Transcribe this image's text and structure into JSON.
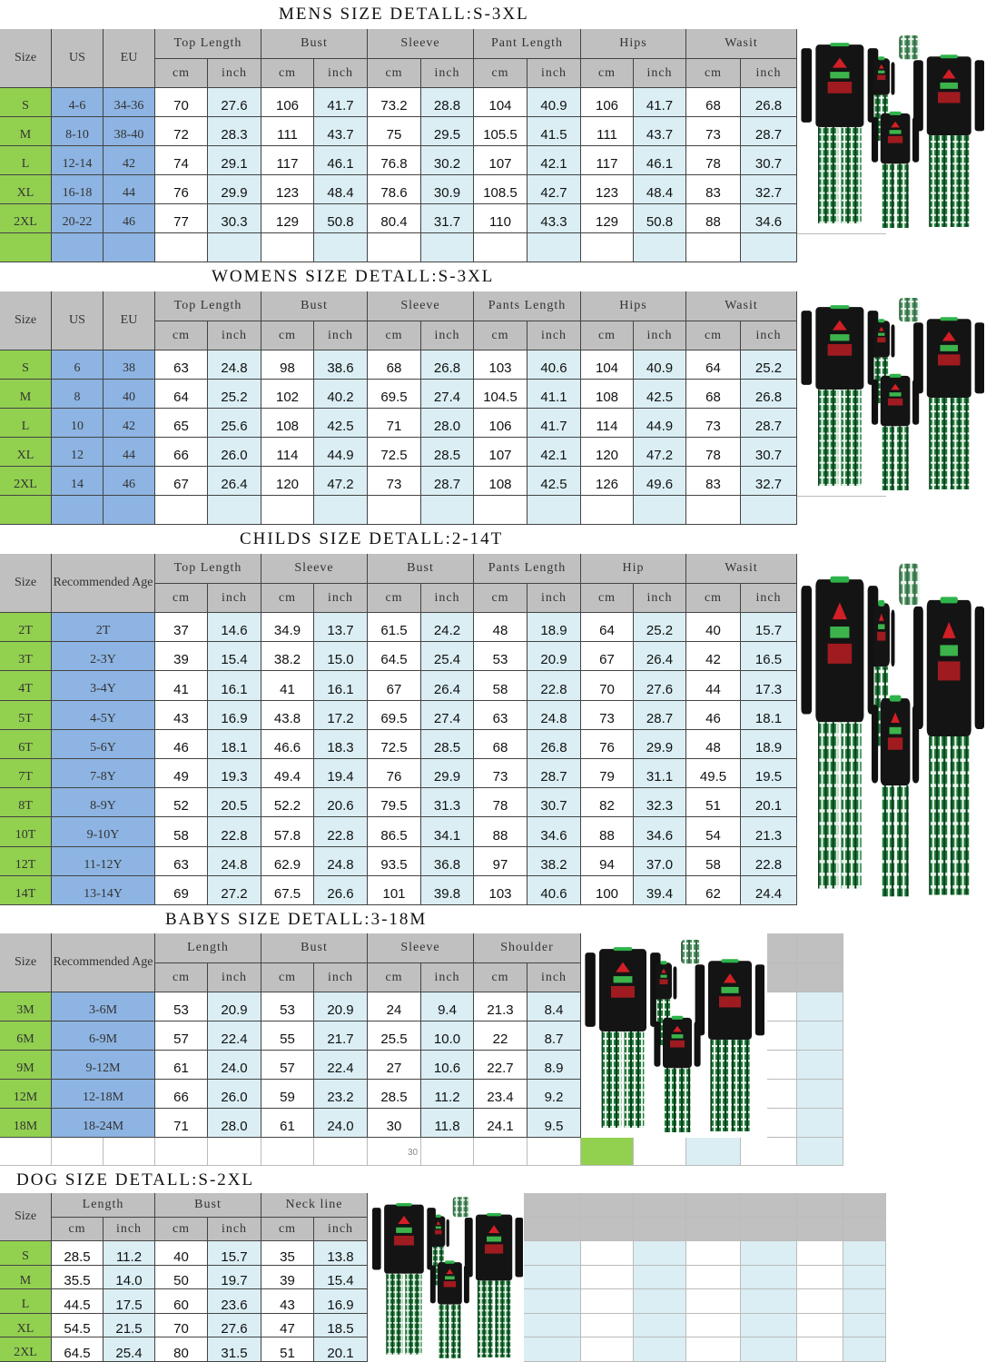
{
  "colors": {
    "header": "#c0c0c0",
    "size_col": "#92d050",
    "lead_col": "#8db4e2",
    "inch_col": "#daeef3",
    "cm_col": "#ffffff"
  },
  "sections": [
    {
      "title": "MENS SIZE DETALL:S-3XL",
      "lead_headers": [
        "Size",
        "US",
        "EU"
      ],
      "groups": [
        {
          "label": "Top Length",
          "sub": [
            "cm",
            "inch"
          ]
        },
        {
          "label": "Bust",
          "sub": [
            "cm",
            "inch"
          ]
        },
        {
          "label": "Sleeve",
          "sub": [
            "cm",
            "inch"
          ]
        },
        {
          "label": "Pant Length",
          "sub": [
            "cm",
            "inch"
          ]
        },
        {
          "label": "Hips",
          "sub": [
            "cm",
            "inch"
          ]
        },
        {
          "label": "Wasit",
          "sub": [
            "cm",
            "inch"
          ]
        }
      ],
      "rows": [
        [
          "S",
          "4-6",
          "34-36",
          "70",
          "27.6",
          "106",
          "41.7",
          "73.2",
          "28.8",
          "104",
          "40.9",
          "106",
          "41.7",
          "68",
          "26.8"
        ],
        [
          "M",
          "8-10",
          "38-40",
          "72",
          "28.3",
          "111",
          "43.7",
          "75",
          "29.5",
          "105.5",
          "41.5",
          "111",
          "43.7",
          "73",
          "28.7"
        ],
        [
          "L",
          "12-14",
          "42",
          "74",
          "29.1",
          "117",
          "46.1",
          "76.8",
          "30.2",
          "107",
          "42.1",
          "117",
          "46.1",
          "78",
          "30.7"
        ],
        [
          "XL",
          "16-18",
          "44",
          "76",
          "29.9",
          "123",
          "48.4",
          "78.6",
          "30.9",
          "108.5",
          "42.7",
          "123",
          "48.4",
          "83",
          "32.7"
        ],
        [
          "2XL",
          "20-22",
          "46",
          "77",
          "30.3",
          "129",
          "50.8",
          "80.4",
          "31.7",
          "110",
          "43.3",
          "129",
          "50.8",
          "88",
          "34.6"
        ]
      ]
    },
    {
      "title": "WOMENS SIZE DETALL:S-3XL",
      "lead_headers": [
        "Size",
        "US",
        "EU"
      ],
      "groups": [
        {
          "label": "Top Length",
          "sub": [
            "cm",
            "inch"
          ]
        },
        {
          "label": "Bust",
          "sub": [
            "cm",
            "inch"
          ]
        },
        {
          "label": "Sleeve",
          "sub": [
            "cm",
            "inch"
          ]
        },
        {
          "label": "Pants Length",
          "sub": [
            "cm",
            "inch"
          ]
        },
        {
          "label": "Hips",
          "sub": [
            "cm",
            "inch"
          ]
        },
        {
          "label": "Wasit",
          "sub": [
            "cm",
            "inch"
          ]
        }
      ],
      "rows": [
        [
          "S",
          "6",
          "38",
          "63",
          "24.8",
          "98",
          "38.6",
          "68",
          "26.8",
          "103",
          "40.6",
          "104",
          "40.9",
          "64",
          "25.2"
        ],
        [
          "M",
          "8",
          "40",
          "64",
          "25.2",
          "102",
          "40.2",
          "69.5",
          "27.4",
          "104.5",
          "41.1",
          "108",
          "42.5",
          "68",
          "26.8"
        ],
        [
          "L",
          "10",
          "42",
          "65",
          "25.6",
          "108",
          "42.5",
          "71",
          "28.0",
          "106",
          "41.7",
          "114",
          "44.9",
          "73",
          "28.7"
        ],
        [
          "XL",
          "12",
          "44",
          "66",
          "26.0",
          "114",
          "44.9",
          "72.5",
          "28.5",
          "107",
          "42.1",
          "120",
          "47.2",
          "78",
          "30.7"
        ],
        [
          "2XL",
          "14",
          "46",
          "67",
          "26.4",
          "120",
          "47.2",
          "73",
          "28.7",
          "108",
          "42.5",
          "126",
          "49.6",
          "83",
          "32.7"
        ]
      ]
    },
    {
      "title": "CHILDS SIZE DETALL:2-14T",
      "lead_headers": [
        "Size",
        "Recommended Age"
      ],
      "groups": [
        {
          "label": "Top Length",
          "sub": [
            "cm",
            "inch"
          ]
        },
        {
          "label": "Sleeve",
          "sub": [
            "cm",
            "inch"
          ]
        },
        {
          "label": "Bust",
          "sub": [
            "cm",
            "inch"
          ]
        },
        {
          "label": "Pants Length",
          "sub": [
            "cm",
            "inch"
          ]
        },
        {
          "label": "Hip",
          "sub": [
            "cm",
            "inch"
          ]
        },
        {
          "label": "Wasit",
          "sub": [
            "cm",
            "inch"
          ]
        }
      ],
      "rows": [
        [
          "2T",
          "2T",
          "37",
          "14.6",
          "34.9",
          "13.7",
          "61.5",
          "24.2",
          "48",
          "18.9",
          "64",
          "25.2",
          "40",
          "15.7"
        ],
        [
          "3T",
          "2-3Y",
          "39",
          "15.4",
          "38.2",
          "15.0",
          "64.5",
          "25.4",
          "53",
          "20.9",
          "67",
          "26.4",
          "42",
          "16.5"
        ],
        [
          "4T",
          "3-4Y",
          "41",
          "16.1",
          "41",
          "16.1",
          "67",
          "26.4",
          "58",
          "22.8",
          "70",
          "27.6",
          "44",
          "17.3"
        ],
        [
          "5T",
          "4-5Y",
          "43",
          "16.9",
          "43.8",
          "17.2",
          "69.5",
          "27.4",
          "63",
          "24.8",
          "73",
          "28.7",
          "46",
          "18.1"
        ],
        [
          "6T",
          "5-6Y",
          "46",
          "18.1",
          "46.6",
          "18.3",
          "72.5",
          "28.5",
          "68",
          "26.8",
          "76",
          "29.9",
          "48",
          "18.9"
        ],
        [
          "7T",
          "7-8Y",
          "49",
          "19.3",
          "49.4",
          "19.4",
          "76",
          "29.9",
          "73",
          "28.7",
          "79",
          "31.1",
          "49.5",
          "19.5"
        ],
        [
          "8T",
          "8-9Y",
          "52",
          "20.5",
          "52.2",
          "20.6",
          "79.5",
          "31.3",
          "78",
          "30.7",
          "82",
          "32.3",
          "51",
          "20.1"
        ],
        [
          "10T",
          "9-10Y",
          "58",
          "22.8",
          "57.8",
          "22.8",
          "86.5",
          "34.1",
          "88",
          "34.6",
          "88",
          "34.6",
          "54",
          "21.3"
        ],
        [
          "12T",
          "11-12Y",
          "63",
          "24.8",
          "62.9",
          "24.8",
          "93.5",
          "36.8",
          "97",
          "38.2",
          "94",
          "37.0",
          "58",
          "22.8"
        ],
        [
          "14T",
          "13-14Y",
          "69",
          "27.2",
          "67.5",
          "26.6",
          "101",
          "39.8",
          "103",
          "40.6",
          "100",
          "39.4",
          "62",
          "24.4"
        ]
      ]
    },
    {
      "title": "BABYS SIZE DETALL:3-18M",
      "lead_headers": [
        "Size",
        "Recommended Age"
      ],
      "groups": [
        {
          "label": "Length",
          "sub": [
            "cm",
            "inch"
          ]
        },
        {
          "label": "Bust",
          "sub": [
            "cm",
            "inch"
          ]
        },
        {
          "label": "Sleeve",
          "sub": [
            "cm",
            "inch"
          ]
        },
        {
          "label": "Shoulder",
          "sub": [
            "cm",
            "inch"
          ]
        }
      ],
      "rows": [
        [
          "3M",
          "3-6M",
          "53",
          "20.9",
          "53",
          "20.9",
          "24",
          "9.4",
          "21.3",
          "8.4"
        ],
        [
          "6M",
          "6-9M",
          "57",
          "22.4",
          "55",
          "21.7",
          "25.5",
          "10.0",
          "22",
          "8.7"
        ],
        [
          "9M",
          "9-12M",
          "61",
          "24.0",
          "57",
          "22.4",
          "27",
          "10.6",
          "22.7",
          "8.9"
        ],
        [
          "12M",
          "12-18M",
          "66",
          "26.0",
          "59",
          "23.2",
          "28.5",
          "11.2",
          "23.4",
          "9.2"
        ],
        [
          "18M",
          "18-24M",
          "71",
          "28.0",
          "61",
          "24.0",
          "30",
          "11.8",
          "24.1",
          "9.5"
        ]
      ],
      "footer_note": "30"
    },
    {
      "title": "DOG SIZE DETALL:S-2XL",
      "lead_headers": [
        "Size"
      ],
      "groups": [
        {
          "label": "Length",
          "sub": [
            "cm",
            "inch"
          ]
        },
        {
          "label": "Bust",
          "sub": [
            "cm",
            "inch"
          ]
        },
        {
          "label": "Neck line",
          "sub": [
            "cm",
            "inch"
          ]
        }
      ],
      "rows": [
        [
          "S",
          "28.5",
          "11.2",
          "40",
          "15.7",
          "35",
          "13.8"
        ],
        [
          "M",
          "35.5",
          "14.0",
          "50",
          "19.7",
          "39",
          "15.4"
        ],
        [
          "L",
          "44.5",
          "17.5",
          "60",
          "23.6",
          "43",
          "16.9"
        ],
        [
          "XL",
          "54.5",
          "21.5",
          "70",
          "27.6",
          "47",
          "18.5"
        ],
        [
          "2XL",
          "64.5",
          "25.4",
          "80",
          "31.5",
          "51",
          "20.1"
        ]
      ]
    }
  ],
  "product_image": {
    "icon": "family-christmas-pajamas-image"
  }
}
